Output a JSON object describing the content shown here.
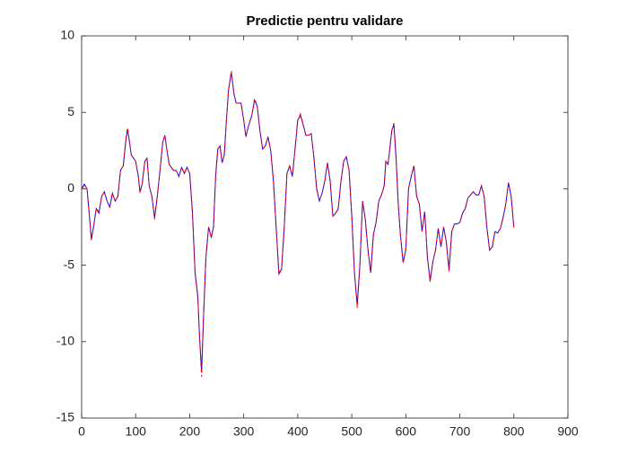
{
  "chart_data": {
    "type": "line",
    "title": "Predictie pentru validare",
    "x": [
      0,
      5,
      10,
      15,
      18,
      22,
      27,
      32,
      37,
      42,
      47,
      52,
      57,
      62,
      67,
      72,
      77,
      82,
      85,
      88,
      92,
      100,
      105,
      108,
      112,
      117,
      121,
      125,
      130,
      135,
      140,
      145,
      150,
      154,
      158,
      162,
      170,
      175,
      180,
      185,
      190,
      195,
      200,
      205,
      210,
      215,
      218,
      222,
      226,
      230,
      235,
      240,
      244,
      248,
      252,
      256,
      260,
      264,
      268,
      272,
      277,
      282,
      286,
      290,
      295,
      300,
      304,
      308,
      315,
      320,
      325,
      330,
      335,
      340,
      345,
      350,
      355,
      360,
      365,
      370,
      375,
      380,
      385,
      390,
      395,
      400,
      405,
      410,
      415,
      420,
      425,
      430,
      435,
      440,
      445,
      450,
      455,
      460,
      465,
      470,
      475,
      480,
      485,
      490,
      495,
      500,
      505,
      510,
      515,
      520,
      525,
      530,
      535,
      540,
      545,
      550,
      555,
      560,
      563,
      567,
      570,
      574,
      578,
      582,
      586,
      590,
      595,
      600,
      605,
      610,
      615,
      620,
      625,
      630,
      635,
      640,
      645,
      650,
      655,
      660,
      665,
      670,
      675,
      680,
      685,
      690,
      695,
      700,
      705,
      710,
      715,
      720,
      725,
      730,
      735,
      740,
      745,
      750,
      755,
      760,
      765,
      770,
      775,
      780,
      785,
      790,
      795,
      800
    ],
    "series": [
      {
        "color": "#0000ff",
        "dash": false,
        "values": [
          0,
          0.3,
          0,
          -2,
          -3.3,
          -2.5,
          -1.3,
          -1.6,
          -0.5,
          -0.2,
          -0.8,
          -1.2,
          -0.3,
          -0.8,
          -0.5,
          1.2,
          1.5,
          3.2,
          3.9,
          3.2,
          2.2,
          1.8,
          0.8,
          -0.2,
          0.3,
          1.8,
          2,
          0.2,
          -0.5,
          -1.9,
          -0.5,
          1.2,
          3,
          3.5,
          2.5,
          1.6,
          1.2,
          1.2,
          0.8,
          1.4,
          1,
          1.4,
          1,
          -1.5,
          -5.5,
          -7,
          -9.5,
          -12,
          -8,
          -4.5,
          -2.5,
          -3.2,
          -2.5,
          0.8,
          2.6,
          2.8,
          1.7,
          2.2,
          4.5,
          6.5,
          7.6,
          6.2,
          5.6,
          5.6,
          5.6,
          4.5,
          3.4,
          4,
          4.8,
          5.8,
          5.4,
          3.8,
          2.6,
          2.8,
          3.4,
          2.5,
          0.5,
          -2.5,
          -5.5,
          -5.3,
          -2.5,
          1,
          1.5,
          0.8,
          2.6,
          4.5,
          4.8,
          4.2,
          3.5,
          3.5,
          3.6,
          2,
          0,
          -0.8,
          -0.3,
          0.5,
          1.7,
          0.5,
          -1.8,
          -1.6,
          -1.3,
          0.5,
          1.8,
          2.1,
          1.2,
          -1.8,
          -5.5,
          -7.6,
          -5,
          -0.8,
          -2,
          -4,
          -5.5,
          -3,
          -2.2,
          -0.8,
          -0.4,
          0.2,
          1.8,
          1.6,
          2.5,
          3.8,
          4.2,
          2,
          -1,
          -3,
          -4.8,
          -4,
          0,
          0.8,
          1.5,
          -0.5,
          -1,
          -2.8,
          -1.5,
          -4.5,
          -6,
          -4.8,
          -4,
          -2.6,
          -3.8,
          -2.5,
          -3.5,
          -5.3,
          -2.8,
          -2.3,
          -2.3,
          -2.2,
          -1.6,
          -1.3,
          -0.6,
          -0.4,
          -0.2,
          -0.4,
          -0.4,
          0.2,
          -0.5,
          -2.5,
          -4,
          -3.8,
          -2.8,
          -2.9,
          -2.6,
          -1.9,
          -1,
          0.4,
          -0.5,
          -2.5
        ]
      },
      {
        "color": "#ff0000",
        "dash": true,
        "values": [
          0,
          0.2,
          0,
          -2.1,
          -3.4,
          -2.5,
          -1.3,
          -1.5,
          -0.5,
          -0.2,
          -0.8,
          -1.2,
          -0.3,
          -0.8,
          -0.5,
          1.2,
          1.5,
          3.3,
          4,
          3.2,
          2.2,
          1.8,
          0.8,
          -0.3,
          0.3,
          1.8,
          2,
          0.2,
          -0.5,
          -2,
          -0.5,
          1.2,
          3,
          3.5,
          2.5,
          1.6,
          1.2,
          1.2,
          0.8,
          1.4,
          1,
          1.4,
          1,
          -1.5,
          -5.6,
          -7.1,
          -9.6,
          -12.3,
          -8,
          -4.5,
          -2.5,
          -3.2,
          -2.5,
          0.8,
          2.6,
          2.8,
          1.7,
          2.2,
          4.5,
          6.5,
          7.7,
          6.2,
          5.6,
          5.6,
          5.6,
          4.5,
          3.4,
          4,
          4.8,
          5.9,
          5.4,
          3.8,
          2.6,
          2.8,
          3.4,
          2.5,
          0.5,
          -2.5,
          -5.6,
          -5.3,
          -2.5,
          1,
          1.5,
          0.8,
          2.6,
          4.5,
          4.9,
          4.2,
          3.5,
          3.5,
          3.6,
          2,
          0,
          -0.8,
          -0.3,
          0.5,
          1.7,
          0.5,
          -1.8,
          -1.6,
          -1.3,
          0.5,
          1.8,
          2.1,
          1.2,
          -1.8,
          -5.5,
          -7.8,
          -5,
          -0.8,
          -2,
          -4,
          -5.5,
          -3,
          -2.2,
          -0.8,
          -0.4,
          0.2,
          1.8,
          1.6,
          2.5,
          3.8,
          4.3,
          2,
          -1,
          -3,
          -4.9,
          -4,
          0,
          0.8,
          1.5,
          -0.5,
          -1,
          -2.8,
          -1.5,
          -4.5,
          -6.1,
          -4.8,
          -4,
          -2.6,
          -3.8,
          -2.5,
          -3.5,
          -5.4,
          -2.8,
          -2.3,
          -2.3,
          -2.2,
          -1.6,
          -1.3,
          -0.6,
          -0.4,
          -0.2,
          -0.4,
          -0.4,
          0.2,
          -0.5,
          -2.5,
          -4,
          -3.9,
          -2.8,
          -2.9,
          -2.6,
          -1.9,
          -1,
          0.4,
          -0.5,
          -2.6
        ]
      }
    ],
    "xlim": [
      0,
      900
    ],
    "xticks": [
      0,
      100,
      200,
      300,
      400,
      500,
      600,
      700,
      800,
      900
    ],
    "ylim": [
      -15,
      10
    ],
    "yticks": [
      -15,
      -10,
      -5,
      0,
      5,
      10
    ]
  }
}
